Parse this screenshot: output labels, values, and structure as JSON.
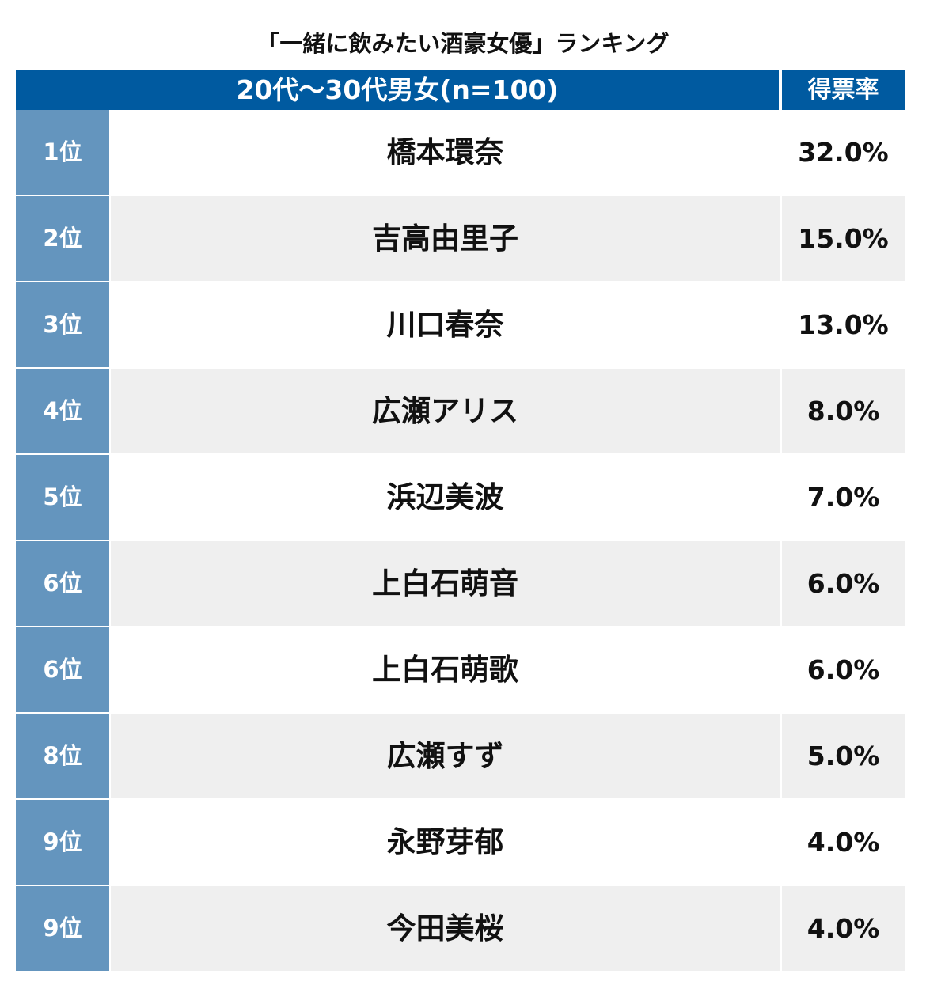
{
  "chart_data": {
    "type": "table",
    "title": "「一緒に飲みたい酒豪女優」ランキング",
    "columns": [
      "20代〜30代男女(n=100)",
      "得票率"
    ],
    "rows": [
      {
        "rank": "1位",
        "name": "橋本環奈",
        "rate": "32.0%"
      },
      {
        "rank": "2位",
        "name": "吉高由里子",
        "rate": "15.0%"
      },
      {
        "rank": "3位",
        "name": "川口春奈",
        "rate": "13.0%"
      },
      {
        "rank": "4位",
        "name": "広瀬アリス",
        "rate": "8.0%"
      },
      {
        "rank": "5位",
        "name": "浜辺美波",
        "rate": "7.0%"
      },
      {
        "rank": "6位",
        "name": "上白石萌音",
        "rate": "6.0%"
      },
      {
        "rank": "6位",
        "name": "上白石萌歌",
        "rate": "6.0%"
      },
      {
        "rank": "8位",
        "name": "広瀬すず",
        "rate": "5.0%"
      },
      {
        "rank": "9位",
        "name": "永野芽郁",
        "rate": "4.0%"
      },
      {
        "rank": "9位",
        "name": "今田美桜",
        "rate": "4.0%"
      }
    ]
  },
  "colors": {
    "header_bg": "#005aa0",
    "rank_bg": "#6495be",
    "row_alt_bg": "#efefef",
    "row_bg": "#ffffff",
    "divider": "#e2e2e2"
  }
}
